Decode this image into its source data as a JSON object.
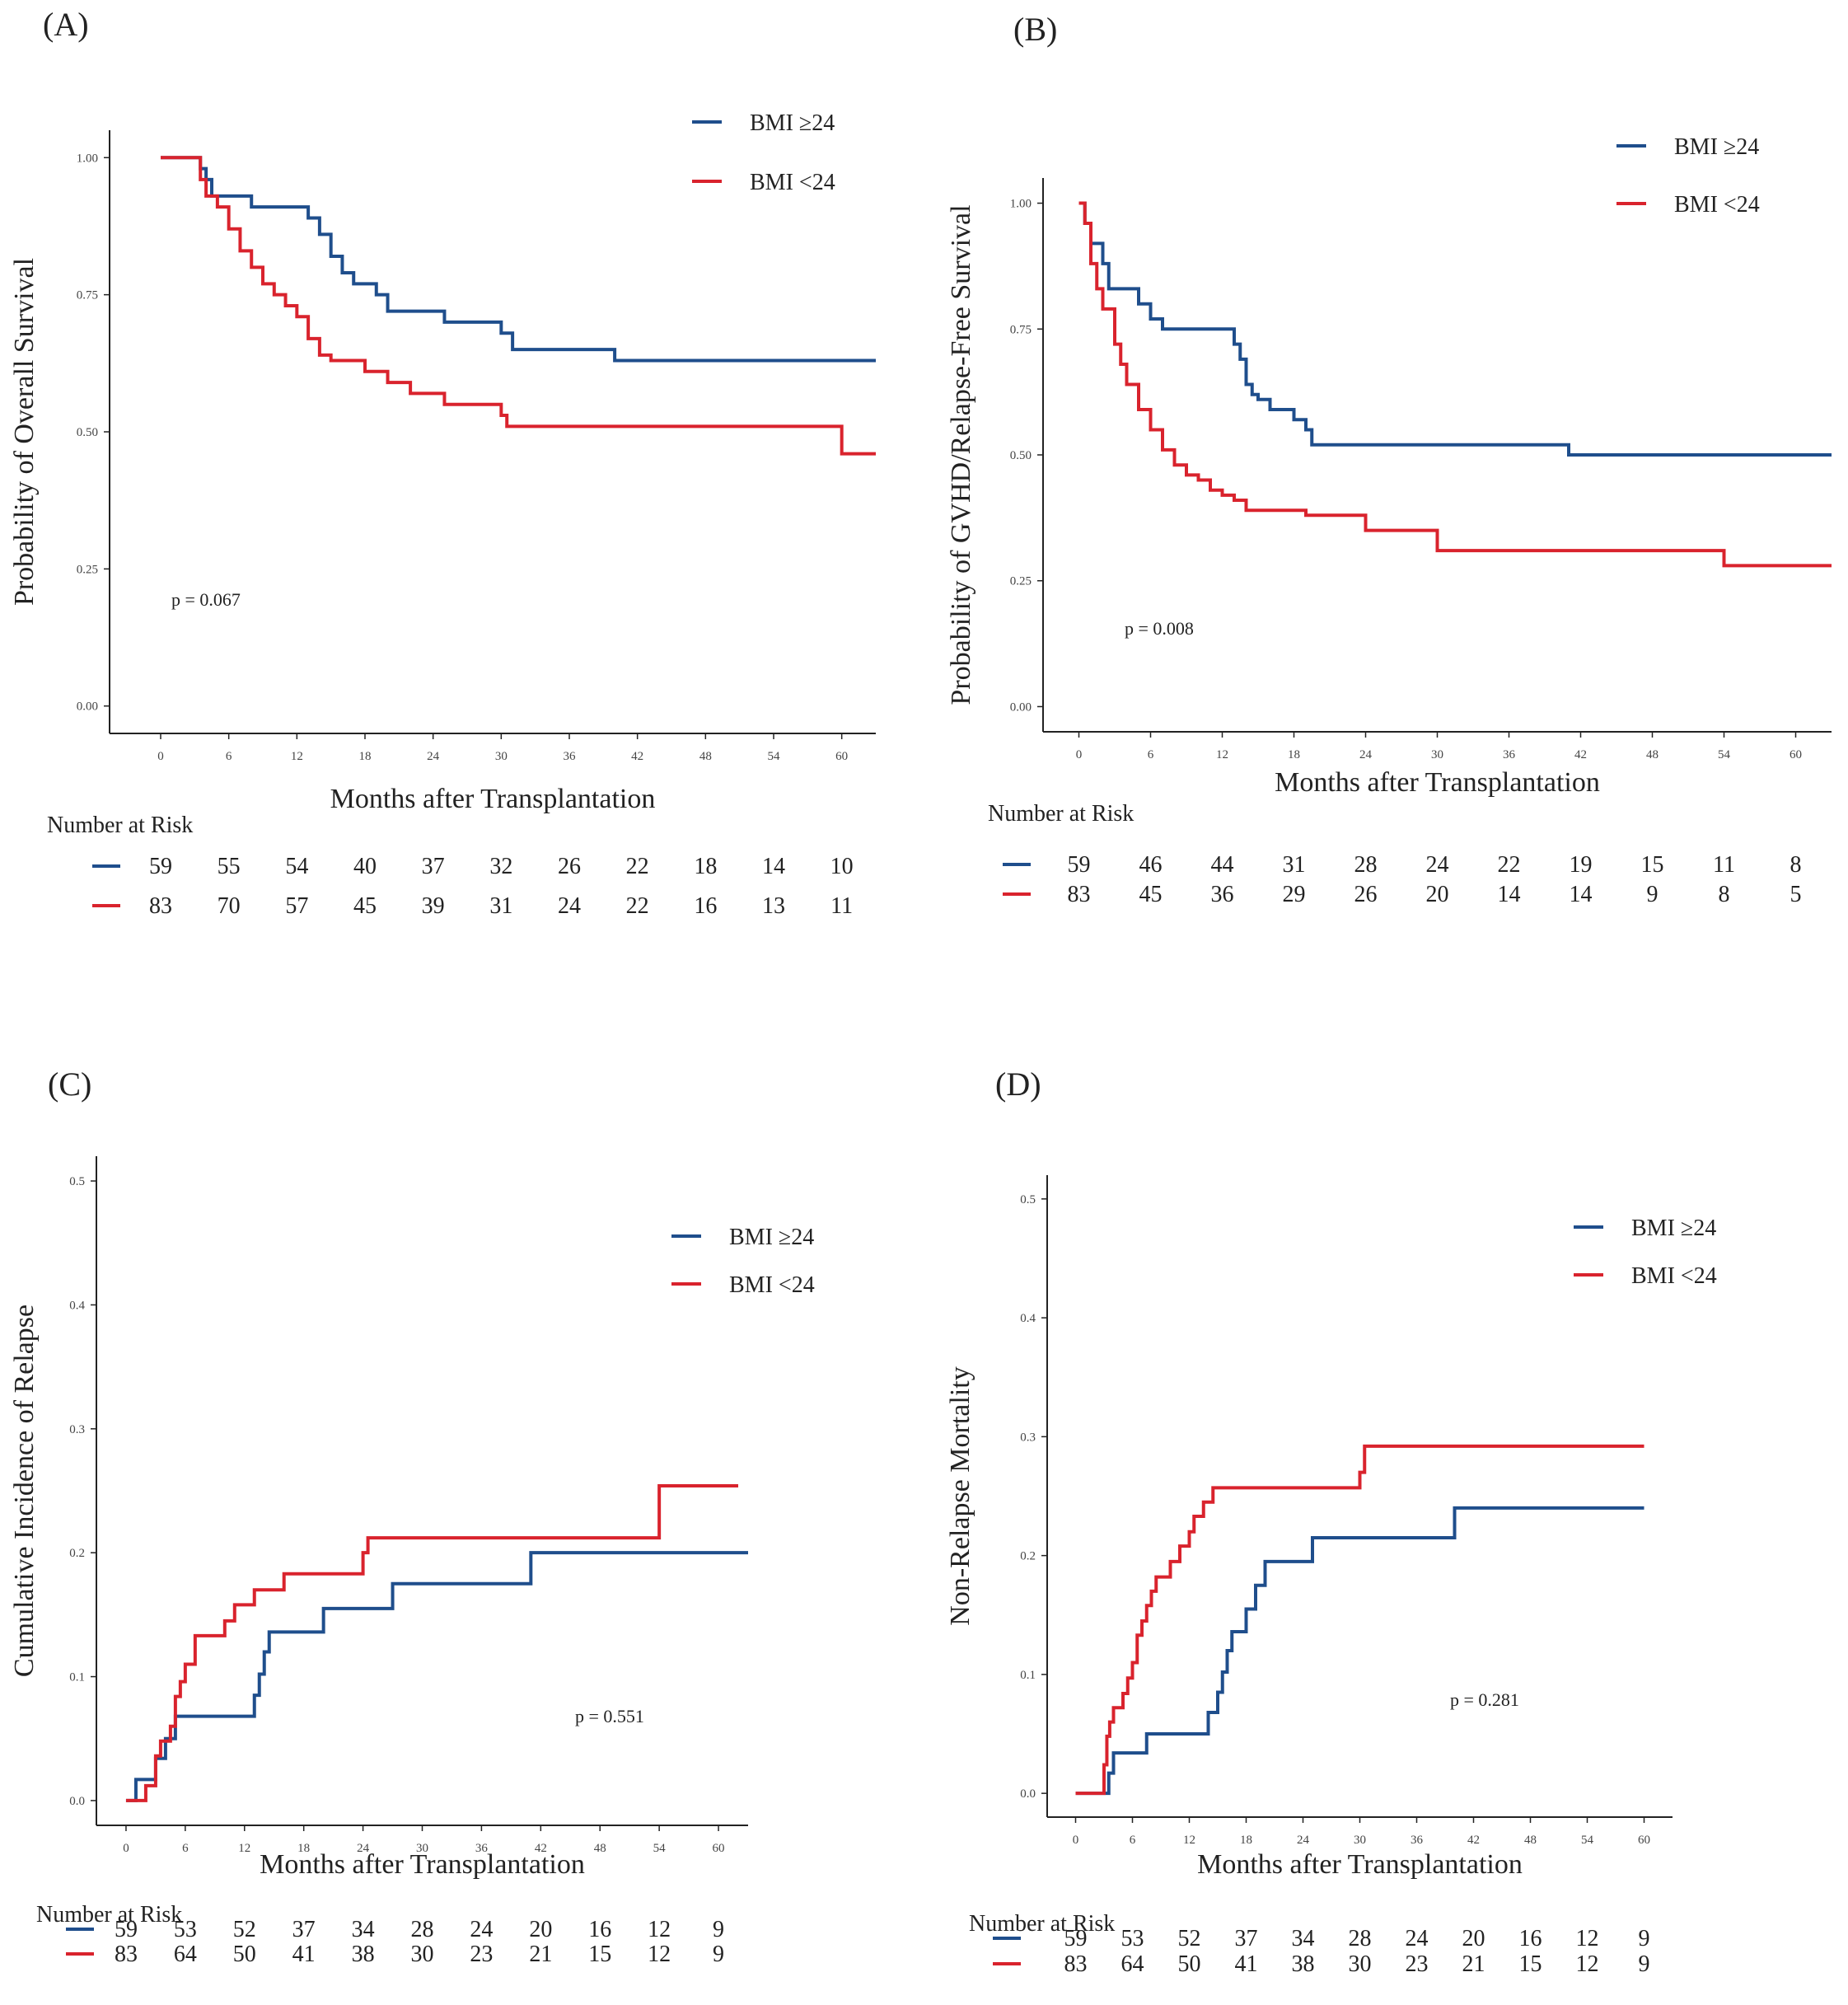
{
  "colors": {
    "blue": "#1f4e8c",
    "red": "#d9232d",
    "axis": "#222222"
  },
  "chart_data": [
    {
      "id": "A",
      "type": "line",
      "panel_label": "(A)",
      "title": "",
      "xlabel": "Months after Transplantation",
      "ylabel": "Probability of Overall Survival",
      "xlim": [
        -4.5,
        63
      ],
      "ylim": [
        -0.05,
        1.05
      ],
      "xticks": [
        "0",
        "6",
        "12",
        "18",
        "24",
        "30",
        "36",
        "42",
        "48",
        "54",
        "60"
      ],
      "yticks": [
        "0.00",
        "0.25",
        "0.50",
        "0.75",
        "1.00"
      ],
      "ytick_values": [
        0,
        0.25,
        0.5,
        0.75,
        1.0
      ],
      "legend": [
        "BMI ≥24",
        "BMI <24"
      ],
      "p_value": "p = 0.067",
      "risk_title": "Number at Risk",
      "series": [
        {
          "name": "BMI ≥24",
          "color": "blue",
          "steps": [
            [
              0,
              1
            ],
            [
              3.5,
              0.98
            ],
            [
              4,
              0.96
            ],
            [
              4.5,
              0.93
            ],
            [
              8,
              0.91
            ],
            [
              13,
              0.89
            ],
            [
              14,
              0.86
            ],
            [
              15,
              0.82
            ],
            [
              16,
              0.79
            ],
            [
              17,
              0.77
            ],
            [
              19,
              0.75
            ],
            [
              20,
              0.72
            ],
            [
              25,
              0.7
            ],
            [
              30,
              0.68
            ],
            [
              31,
              0.65
            ],
            [
              40,
              0.63
            ],
            [
              63,
              0.63
            ]
          ]
        },
        {
          "name": "BMI <24",
          "color": "red",
          "steps": [
            [
              0,
              1
            ],
            [
              3.5,
              0.96
            ],
            [
              4,
              0.93
            ],
            [
              5,
              0.91
            ],
            [
              6,
              0.87
            ],
            [
              7,
              0.83
            ],
            [
              8,
              0.8
            ],
            [
              9,
              0.77
            ],
            [
              10,
              0.75
            ],
            [
              11,
              0.73
            ],
            [
              12,
              0.71
            ],
            [
              13,
              0.67
            ],
            [
              14,
              0.64
            ],
            [
              15,
              0.63
            ],
            [
              18,
              0.61
            ],
            [
              20,
              0.59
            ],
            [
              22,
              0.57
            ],
            [
              25,
              0.55
            ],
            [
              30,
              0.53
            ],
            [
              30.5,
              0.51
            ],
            [
              60,
              0.46
            ],
            [
              63,
              0.46
            ]
          ]
        }
      ],
      "risk": [
        {
          "name": "BMI ≥24",
          "color": "blue",
          "values": [
            "59",
            "55",
            "54",
            "40",
            "37",
            "32",
            "26",
            "22",
            "18",
            "14",
            "10"
          ]
        },
        {
          "name": "BMI <24",
          "color": "red",
          "values": [
            "83",
            "70",
            "57",
            "45",
            "39",
            "31",
            "24",
            "22",
            "16",
            "13",
            "11"
          ]
        }
      ]
    },
    {
      "id": "B",
      "type": "line",
      "panel_label": "(B)",
      "title": "",
      "xlabel": "Months after Transplantation",
      "ylabel": "Probability of GVHD/Relapse-Free Survival",
      "xlim": [
        -3,
        63
      ],
      "ylim": [
        -0.05,
        1.05
      ],
      "xticks": [
        "0",
        "6",
        "12",
        "18",
        "24",
        "30",
        "36",
        "42",
        "48",
        "54",
        "60"
      ],
      "yticks": [
        "0.00",
        "0.25",
        "0.50",
        "0.75",
        "1.00"
      ],
      "ytick_values": [
        0,
        0.25,
        0.5,
        0.75,
        1.0
      ],
      "legend": [
        "BMI ≥24",
        "BMI <24"
      ],
      "p_value": "p = 0.008",
      "risk_title": "Number at Risk",
      "series": [
        {
          "name": "BMI ≥24",
          "color": "blue",
          "steps": [
            [
              0,
              1
            ],
            [
              0.5,
              0.96
            ],
            [
              1,
              0.92
            ],
            [
              2,
              0.88
            ],
            [
              2.5,
              0.83
            ],
            [
              5,
              0.8
            ],
            [
              6,
              0.77
            ],
            [
              7,
              0.75
            ],
            [
              13,
              0.72
            ],
            [
              13.5,
              0.69
            ],
            [
              14,
              0.64
            ],
            [
              14.5,
              0.62
            ],
            [
              15,
              0.61
            ],
            [
              16,
              0.59
            ],
            [
              18,
              0.57
            ],
            [
              19,
              0.55
            ],
            [
              19.5,
              0.52
            ],
            [
              41,
              0.5
            ],
            [
              63,
              0.5
            ]
          ]
        },
        {
          "name": "BMI <24",
          "color": "red",
          "steps": [
            [
              0,
              1
            ],
            [
              0.5,
              0.96
            ],
            [
              1,
              0.88
            ],
            [
              1.5,
              0.83
            ],
            [
              2,
              0.79
            ],
            [
              3,
              0.72
            ],
            [
              3.5,
              0.68
            ],
            [
              4,
              0.64
            ],
            [
              5,
              0.59
            ],
            [
              6,
              0.55
            ],
            [
              7,
              0.51
            ],
            [
              8,
              0.48
            ],
            [
              9,
              0.46
            ],
            [
              10,
              0.45
            ],
            [
              11,
              0.43
            ],
            [
              12,
              0.42
            ],
            [
              13,
              0.41
            ],
            [
              14,
              0.39
            ],
            [
              19,
              0.38
            ],
            [
              24,
              0.35
            ],
            [
              30,
              0.31
            ],
            [
              54,
              0.28
            ],
            [
              63,
              0.28
            ]
          ]
        }
      ],
      "risk": [
        {
          "name": "BMI ≥24",
          "color": "blue",
          "values": [
            "59",
            "46",
            "44",
            "31",
            "28",
            "24",
            "22",
            "19",
            "15",
            "11",
            "8"
          ]
        },
        {
          "name": "BMI <24",
          "color": "red",
          "values": [
            "83",
            "45",
            "36",
            "29",
            "26",
            "20",
            "14",
            "14",
            "9",
            "8",
            "5"
          ]
        }
      ]
    },
    {
      "id": "C",
      "type": "line",
      "panel_label": "(C)",
      "title": "",
      "xlabel": "Months after Transplantation",
      "ylabel": "Cumulative Incidence of Relapse",
      "xlim": [
        -3,
        63
      ],
      "ylim": [
        -0.02,
        0.52
      ],
      "xticks": [
        "0",
        "6",
        "12",
        "18",
        "24",
        "30",
        "36",
        "42",
        "48",
        "54",
        "60"
      ],
      "yticks": [
        "0.0",
        "0.1",
        "0.2",
        "0.3",
        "0.4",
        "0.5"
      ],
      "ytick_values": [
        0,
        0.1,
        0.2,
        0.3,
        0.4,
        0.5
      ],
      "legend": [
        "BMI ≥24",
        "BMI <24"
      ],
      "p_value": "p = 0.551",
      "risk_title": "Number at Risk",
      "series": [
        {
          "name": "BMI ≥24",
          "color": "blue",
          "steps": [
            [
              0,
              0
            ],
            [
              1,
              0.017
            ],
            [
              3,
              0.034
            ],
            [
              4,
              0.05
            ],
            [
              5,
              0.068
            ],
            [
              13,
              0.085
            ],
            [
              13.5,
              0.102
            ],
            [
              14,
              0.12
            ],
            [
              14.5,
              0.136
            ],
            [
              20,
              0.155
            ],
            [
              27,
              0.175
            ],
            [
              41,
              0.2
            ],
            [
              63,
              0.2
            ]
          ]
        },
        {
          "name": "BMI <24",
          "color": "red",
          "steps": [
            [
              0,
              0
            ],
            [
              2,
              0.012
            ],
            [
              3,
              0.036
            ],
            [
              3.5,
              0.048
            ],
            [
              4.5,
              0.06
            ],
            [
              5,
              0.084
            ],
            [
              5.5,
              0.096
            ],
            [
              6,
              0.11
            ],
            [
              7,
              0.133
            ],
            [
              10,
              0.145
            ],
            [
              11,
              0.158
            ],
            [
              13,
              0.17
            ],
            [
              16,
              0.183
            ],
            [
              24,
              0.2
            ],
            [
              24.5,
              0.212
            ],
            [
              54,
              0.254
            ],
            [
              62,
              0.254
            ]
          ]
        }
      ],
      "risk": [
        {
          "name": "BMI ≥24",
          "color": "blue",
          "values": [
            "59",
            "53",
            "52",
            "37",
            "34",
            "28",
            "24",
            "20",
            "16",
            "12",
            "9"
          ]
        },
        {
          "name": "BMI <24",
          "color": "red",
          "values": [
            "83",
            "64",
            "50",
            "41",
            "38",
            "30",
            "23",
            "21",
            "15",
            "12",
            "9"
          ]
        }
      ]
    },
    {
      "id": "D",
      "type": "line",
      "panel_label": "(D)",
      "title": "",
      "xlabel": "Months after Transplantation",
      "ylabel": "Non-Relapse Mortality",
      "xlim": [
        -3,
        63
      ],
      "ylim": [
        -0.02,
        0.52
      ],
      "xticks": [
        "0",
        "6",
        "12",
        "18",
        "24",
        "30",
        "36",
        "42",
        "48",
        "54",
        "60"
      ],
      "yticks": [
        "0.0",
        "0.1",
        "0.2",
        "0.3",
        "0.4",
        "0.5"
      ],
      "ytick_values": [
        0,
        0.1,
        0.2,
        0.3,
        0.4,
        0.5
      ],
      "legend": [
        "BMI ≥24",
        "BMI <24"
      ],
      "p_value": "p = 0.281",
      "risk_title": "Number at Risk",
      "series": [
        {
          "name": "BMI ≥24",
          "color": "blue",
          "steps": [
            [
              0,
              0
            ],
            [
              3.5,
              0.017
            ],
            [
              4,
              0.034
            ],
            [
              7.5,
              0.05
            ],
            [
              14,
              0.068
            ],
            [
              15,
              0.085
            ],
            [
              15.5,
              0.102
            ],
            [
              16,
              0.12
            ],
            [
              16.5,
              0.136
            ],
            [
              18,
              0.155
            ],
            [
              19,
              0.175
            ],
            [
              20,
              0.195
            ],
            [
              25,
              0.215
            ],
            [
              40,
              0.24
            ],
            [
              60,
              0.24
            ]
          ]
        },
        {
          "name": "BMI <24",
          "color": "red",
          "steps": [
            [
              0,
              0
            ],
            [
              3,
              0.024
            ],
            [
              3.3,
              0.048
            ],
            [
              3.6,
              0.06
            ],
            [
              4,
              0.072
            ],
            [
              5,
              0.084
            ],
            [
              5.5,
              0.097
            ],
            [
              6,
              0.11
            ],
            [
              6.5,
              0.133
            ],
            [
              7,
              0.145
            ],
            [
              7.5,
              0.158
            ],
            [
              8,
              0.17
            ],
            [
              8.5,
              0.182
            ],
            [
              10,
              0.195
            ],
            [
              11,
              0.208
            ],
            [
              12,
              0.22
            ],
            [
              12.5,
              0.233
            ],
            [
              13.5,
              0.245
            ],
            [
              14.5,
              0.257
            ],
            [
              30,
              0.27
            ],
            [
              30.5,
              0.292
            ],
            [
              60,
              0.292
            ]
          ]
        }
      ],
      "risk": [
        {
          "name": "BMI ≥24",
          "color": "blue",
          "values": [
            "59",
            "53",
            "52",
            "37",
            "34",
            "28",
            "24",
            "20",
            "16",
            "12",
            "9"
          ]
        },
        {
          "name": "BMI <24",
          "color": "red",
          "values": [
            "83",
            "64",
            "50",
            "41",
            "38",
            "30",
            "23",
            "21",
            "15",
            "12",
            "9"
          ]
        }
      ]
    }
  ]
}
